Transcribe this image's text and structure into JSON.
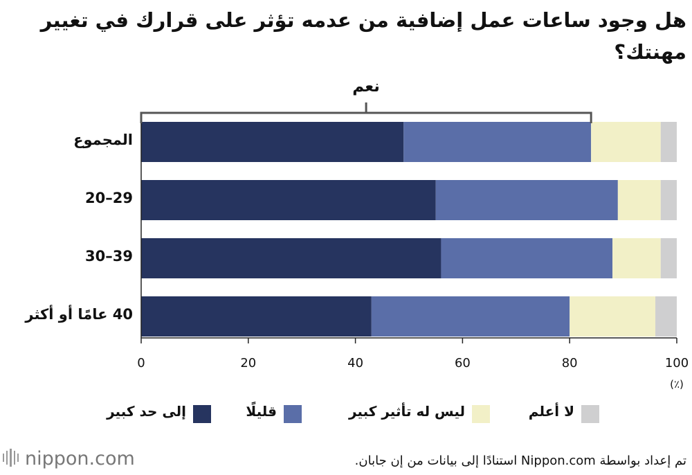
{
  "chart_data": {
    "type": "stacked-bar-horizontal",
    "title": "هل وجود ساعات عمل إضافية من عدمه تؤثر على قرارك في تغيير مهنتك؟",
    "bracket_label": "نعم",
    "unit_label": "(٪)",
    "categories": [
      "المجموع",
      "20–29",
      "30–39",
      "40 عامًا أو أكثر"
    ],
    "series": [
      {
        "name": "إلى حد كبير",
        "color": "#26345f",
        "values": [
          49,
          55,
          56,
          43
        ]
      },
      {
        "name": "قليلًا",
        "color": "#5a6ea8",
        "values": [
          35,
          34,
          32,
          37
        ]
      },
      {
        "name": "ليس له تأثير كبير",
        "color": "#f2f0c7",
        "values": [
          13,
          8,
          9,
          16
        ]
      },
      {
        "name": "لا أعلم",
        "color": "#cfcfd0",
        "values": [
          3,
          3,
          3,
          4
        ]
      }
    ],
    "xlim": [
      0,
      100
    ],
    "xticks": [
      0,
      20,
      40,
      60,
      80,
      100
    ]
  },
  "footer": {
    "logo": "nippon.com",
    "source": "تم إعداد بواسطة Nippon.com استنادًا إلى بيانات من إن جابان."
  }
}
